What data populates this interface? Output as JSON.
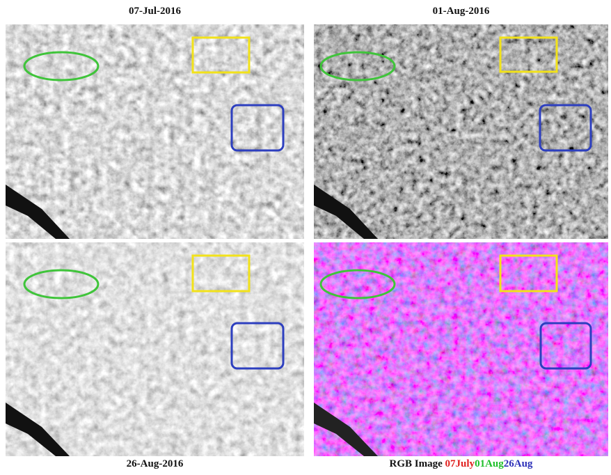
{
  "panels": [
    {
      "title": "07-Jul-2016"
    },
    {
      "title": "01-Aug-2016"
    },
    {
      "title": "26-Aug-2016"
    },
    {
      "title": "RGB Image"
    }
  ],
  "rgb_bands": [
    {
      "label": "07July",
      "color": "#e0201e"
    },
    {
      "label": "01Aug",
      "color": "#1fbf2a"
    },
    {
      "label": "26Aug",
      "color": "#2b2fb8"
    }
  ]
}
